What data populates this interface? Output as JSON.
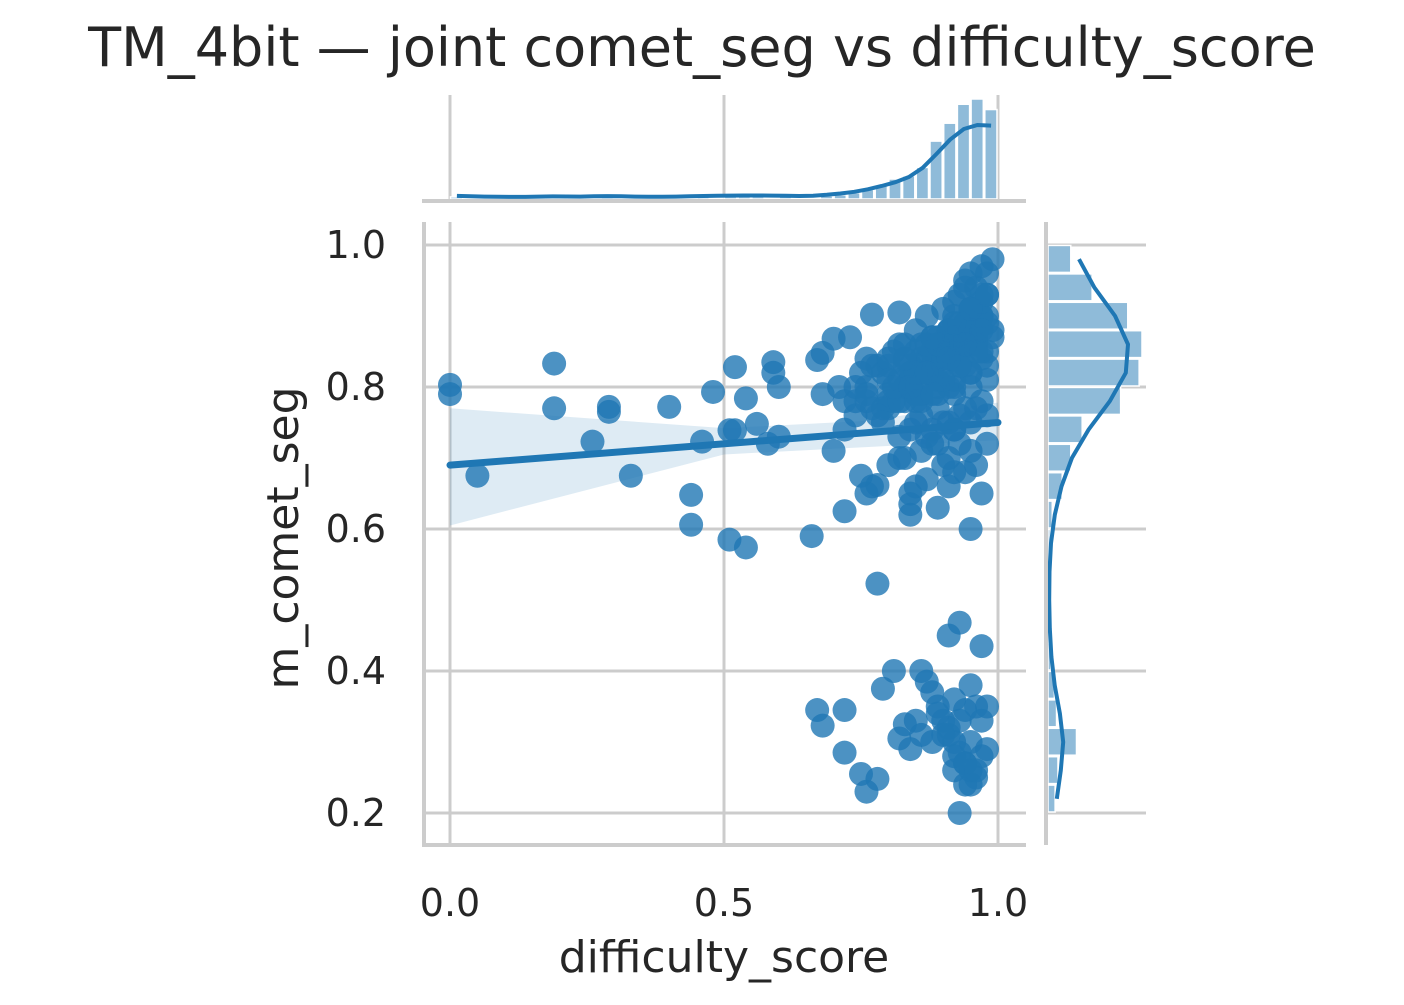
{
  "chart_data": {
    "type": "scatter",
    "title": "TM_4bit — joint comet_seg vs difficulty_score",
    "xlabel": "difficulty_score",
    "ylabel": "m_comet_seg",
    "xlim": [
      -0.05,
      1.05
    ],
    "ylim": [
      0.16,
      1.04
    ],
    "x_ticks": [
      {
        "value": 0.0,
        "label": "0.0"
      },
      {
        "value": 0.5,
        "label": "0.5"
      },
      {
        "value": 1.0,
        "label": "1.0"
      }
    ],
    "y_ticks": [
      {
        "value": 0.2,
        "label": "0.2"
      },
      {
        "value": 0.4,
        "label": "0.4"
      },
      {
        "value": 0.6,
        "label": "0.6"
      },
      {
        "value": 0.8,
        "label": "0.8"
      },
      {
        "value": 1.0,
        "label": "1.0"
      }
    ],
    "grid": true,
    "colors": {
      "points": "#1f77b4",
      "band": "#1f77b4",
      "grid": "#cccccc",
      "text": "#262626"
    },
    "regression": {
      "x": [
        0.0,
        1.0
      ],
      "y": [
        0.69,
        0.75
      ],
      "ci": {
        "x": [
          0.0,
          0.5,
          0.75,
          1.0
        ],
        "lower": [
          0.605,
          0.705,
          0.715,
          0.725
        ],
        "upper": [
          0.77,
          0.742,
          0.752,
          0.778
        ]
      }
    },
    "series": [
      {
        "x": [
          0.0,
          0.0,
          0.05,
          0.19,
          0.19,
          0.26,
          0.29,
          0.29,
          0.33,
          0.4,
          0.44,
          0.44,
          0.46,
          0.48,
          0.51,
          0.51,
          0.52,
          0.52,
          0.54,
          0.54,
          0.56,
          0.58,
          0.59,
          0.59,
          0.6,
          0.6,
          0.66,
          0.67,
          0.68,
          0.68,
          0.7,
          0.7,
          0.71,
          0.72,
          0.72,
          0.73,
          0.74,
          0.74,
          0.75,
          0.75,
          0.76,
          0.76,
          0.77,
          0.77,
          0.78,
          0.78,
          0.79,
          0.8,
          0.8,
          0.81,
          0.82,
          0.82,
          0.83,
          0.83,
          0.84,
          0.84,
          0.84,
          0.85,
          0.85,
          0.86,
          0.86,
          0.87,
          0.87,
          0.88,
          0.88,
          0.89,
          0.89,
          0.9,
          0.9,
          0.91,
          0.91,
          0.92,
          0.92,
          0.93,
          0.93,
          0.94,
          0.94,
          0.95,
          0.95,
          0.96,
          0.96,
          0.97,
          0.97,
          0.98,
          0.98,
          0.99,
          0.76,
          0.79,
          0.82,
          0.85,
          0.88,
          0.91,
          0.94,
          0.97,
          0.78,
          0.81,
          0.84,
          0.87,
          0.9,
          0.93,
          0.96,
          0.99,
          0.8,
          0.83,
          0.86,
          0.89,
          0.92,
          0.95,
          0.98,
          0.77,
          0.8,
          0.83,
          0.86,
          0.89,
          0.92,
          0.95,
          0.98,
          0.74,
          0.77,
          0.8,
          0.83,
          0.86,
          0.89,
          0.92,
          0.95,
          0.98,
          0.82,
          0.85,
          0.88,
          0.91,
          0.94,
          0.97,
          0.84,
          0.87,
          0.9,
          0.93,
          0.96,
          0.99,
          0.86,
          0.89,
          0.92,
          0.95,
          0.98,
          0.88,
          0.91,
          0.94,
          0.97,
          0.9,
          0.93,
          0.96,
          0.92,
          0.95,
          0.98,
          0.94,
          0.97,
          0.76,
          0.8,
          0.84,
          0.88,
          0.92,
          0.96,
          0.72,
          0.76,
          0.8,
          0.84,
          0.88,
          0.92,
          0.96,
          0.78,
          0.82,
          0.86,
          0.9,
          0.94,
          0.98,
          0.81,
          0.85,
          0.89,
          0.93,
          0.97,
          0.83,
          0.87,
          0.91,
          0.95,
          0.85,
          0.89,
          0.93,
          0.97,
          0.87,
          0.91,
          0.95,
          0.89,
          0.93,
          0.97,
          0.84,
          0.87,
          0.9,
          0.93,
          0.96,
          0.86,
          0.89,
          0.92,
          0.95,
          0.98,
          0.91,
          0.92,
          0.95,
          0.82,
          0.79,
          0.85,
          0.88,
          0.9,
          0.93,
          0.96,
          0.84,
          0.87,
          0.91,
          0.94,
          0.97,
          0.88,
          0.92,
          0.95,
          0.98,
          0.67,
          0.68,
          0.72,
          0.72,
          0.75,
          0.76,
          0.78,
          0.79,
          0.81,
          0.82,
          0.83,
          0.84,
          0.85,
          0.86,
          0.87,
          0.88,
          0.89,
          0.9,
          0.91,
          0.92,
          0.93,
          0.94,
          0.95,
          0.96,
          0.97,
          0.98,
          0.86,
          0.89,
          0.92,
          0.95,
          0.88,
          0.91,
          0.94,
          0.97,
          0.9,
          0.93,
          0.96,
          0.92,
          0.95,
          0.98,
          0.91,
          0.93,
          0.94,
          0.95,
          0.92,
          0.94,
          0.96,
          0.93,
          0.97
        ],
        "y": [
          0.79,
          0.803,
          0.675,
          0.77,
          0.833,
          0.723,
          0.765,
          0.772,
          0.675,
          0.772,
          0.606,
          0.648,
          0.723,
          0.793,
          0.739,
          0.585,
          0.828,
          0.739,
          0.784,
          0.574,
          0.748,
          0.72,
          0.835,
          0.82,
          0.73,
          0.8,
          0.59,
          0.838,
          0.848,
          0.79,
          0.868,
          0.71,
          0.8,
          0.74,
          0.625,
          0.87,
          0.76,
          0.78,
          0.675,
          0.82,
          0.65,
          0.84,
          0.902,
          0.66,
          0.662,
          0.523,
          0.77,
          0.83,
          0.69,
          0.78,
          0.905,
          0.73,
          0.7,
          0.86,
          0.635,
          0.62,
          0.65,
          0.88,
          0.66,
          0.78,
          0.86,
          0.9,
          0.67,
          0.83,
          0.72,
          0.87,
          0.63,
          0.91,
          0.69,
          0.88,
          0.7,
          0.92,
          0.74,
          0.93,
          0.72,
          0.94,
          0.68,
          0.96,
          0.71,
          0.94,
          0.69,
          0.93,
          0.65,
          0.96,
          0.72,
          0.98,
          0.8,
          0.82,
          0.81,
          0.79,
          0.82,
          0.8,
          0.83,
          0.84,
          0.83,
          0.85,
          0.82,
          0.84,
          0.86,
          0.85,
          0.87,
          0.88,
          0.78,
          0.8,
          0.79,
          0.81,
          0.8,
          0.82,
          0.83,
          0.77,
          0.79,
          0.78,
          0.8,
          0.79,
          0.81,
          0.82,
          0.85,
          0.8,
          0.83,
          0.84,
          0.83,
          0.84,
          0.86,
          0.87,
          0.88,
          0.9,
          0.86,
          0.85,
          0.87,
          0.88,
          0.89,
          0.9,
          0.81,
          0.82,
          0.84,
          0.85,
          0.86,
          0.87,
          0.76,
          0.77,
          0.79,
          0.8,
          0.81,
          0.74,
          0.75,
          0.77,
          0.78,
          0.83,
          0.85,
          0.89,
          0.9,
          0.91,
          0.93,
          0.95,
          0.97,
          0.78,
          0.77,
          0.8,
          0.82,
          0.84,
          0.86,
          0.78,
          0.79,
          0.81,
          0.83,
          0.85,
          0.87,
          0.91,
          0.76,
          0.78,
          0.82,
          0.84,
          0.87,
          0.89,
          0.8,
          0.82,
          0.86,
          0.88,
          0.9,
          0.84,
          0.86,
          0.88,
          0.91,
          0.78,
          0.8,
          0.83,
          0.85,
          0.82,
          0.85,
          0.88,
          0.86,
          0.89,
          0.92,
          0.74,
          0.73,
          0.75,
          0.76,
          0.77,
          0.71,
          0.72,
          0.74,
          0.75,
          0.76,
          0.66,
          0.68,
          0.6,
          0.7,
          0.75,
          0.75,
          0.79,
          0.81,
          0.83,
          0.85,
          0.8,
          0.82,
          0.84,
          0.86,
          0.88,
          0.87,
          0.89,
          0.91,
          0.93,
          0.345,
          0.323,
          0.345,
          0.285,
          0.255,
          0.23,
          0.248,
          0.375,
          0.4,
          0.305,
          0.325,
          0.29,
          0.33,
          0.4,
          0.385,
          0.37,
          0.35,
          0.33,
          0.31,
          0.3,
          0.285,
          0.27,
          0.26,
          0.25,
          0.28,
          0.29,
          0.31,
          0.34,
          0.36,
          0.38,
          0.3,
          0.32,
          0.345,
          0.33,
          0.31,
          0.33,
          0.35,
          0.26,
          0.24,
          0.35,
          0.45,
          0.468,
          0.24,
          0.3,
          0.28,
          0.27,
          0.26,
          0.2,
          0.435
        ]
      }
    ],
    "marginal_x": {
      "bins": [
        0.0,
        0.025,
        0.05,
        0.075,
        0.1,
        0.125,
        0.15,
        0.175,
        0.2,
        0.225,
        0.25,
        0.275,
        0.3,
        0.325,
        0.35,
        0.375,
        0.4,
        0.425,
        0.45,
        0.475,
        0.5,
        0.525,
        0.55,
        0.575,
        0.6,
        0.625,
        0.65,
        0.675,
        0.7,
        0.725,
        0.75,
        0.775,
        0.8,
        0.825,
        0.85,
        0.875,
        0.9,
        0.925,
        0.95,
        0.975,
        1.0
      ],
      "counts": [
        2,
        0,
        1,
        0,
        0,
        0,
        0,
        2,
        0,
        0,
        1,
        2,
        0,
        1,
        0,
        0,
        1,
        0,
        2,
        1,
        2,
        2,
        2,
        1,
        3,
        0,
        1,
        3,
        4,
        6,
        9,
        13,
        19,
        22,
        30,
        55,
        72,
        90,
        95,
        85
      ]
    },
    "marginal_y": {
      "bins": [
        0.2,
        0.24,
        0.28,
        0.32,
        0.36,
        0.4,
        0.44,
        0.48,
        0.52,
        0.56,
        0.6,
        0.64,
        0.68,
        0.72,
        0.76,
        0.8,
        0.84,
        0.88,
        0.92,
        0.96,
        1.0
      ],
      "counts": [
        10,
        14,
        40,
        12,
        9,
        4,
        2,
        1,
        2,
        3,
        6,
        20,
        32,
        48,
        102,
        128,
        132,
        112,
        62,
        32
      ]
    }
  }
}
